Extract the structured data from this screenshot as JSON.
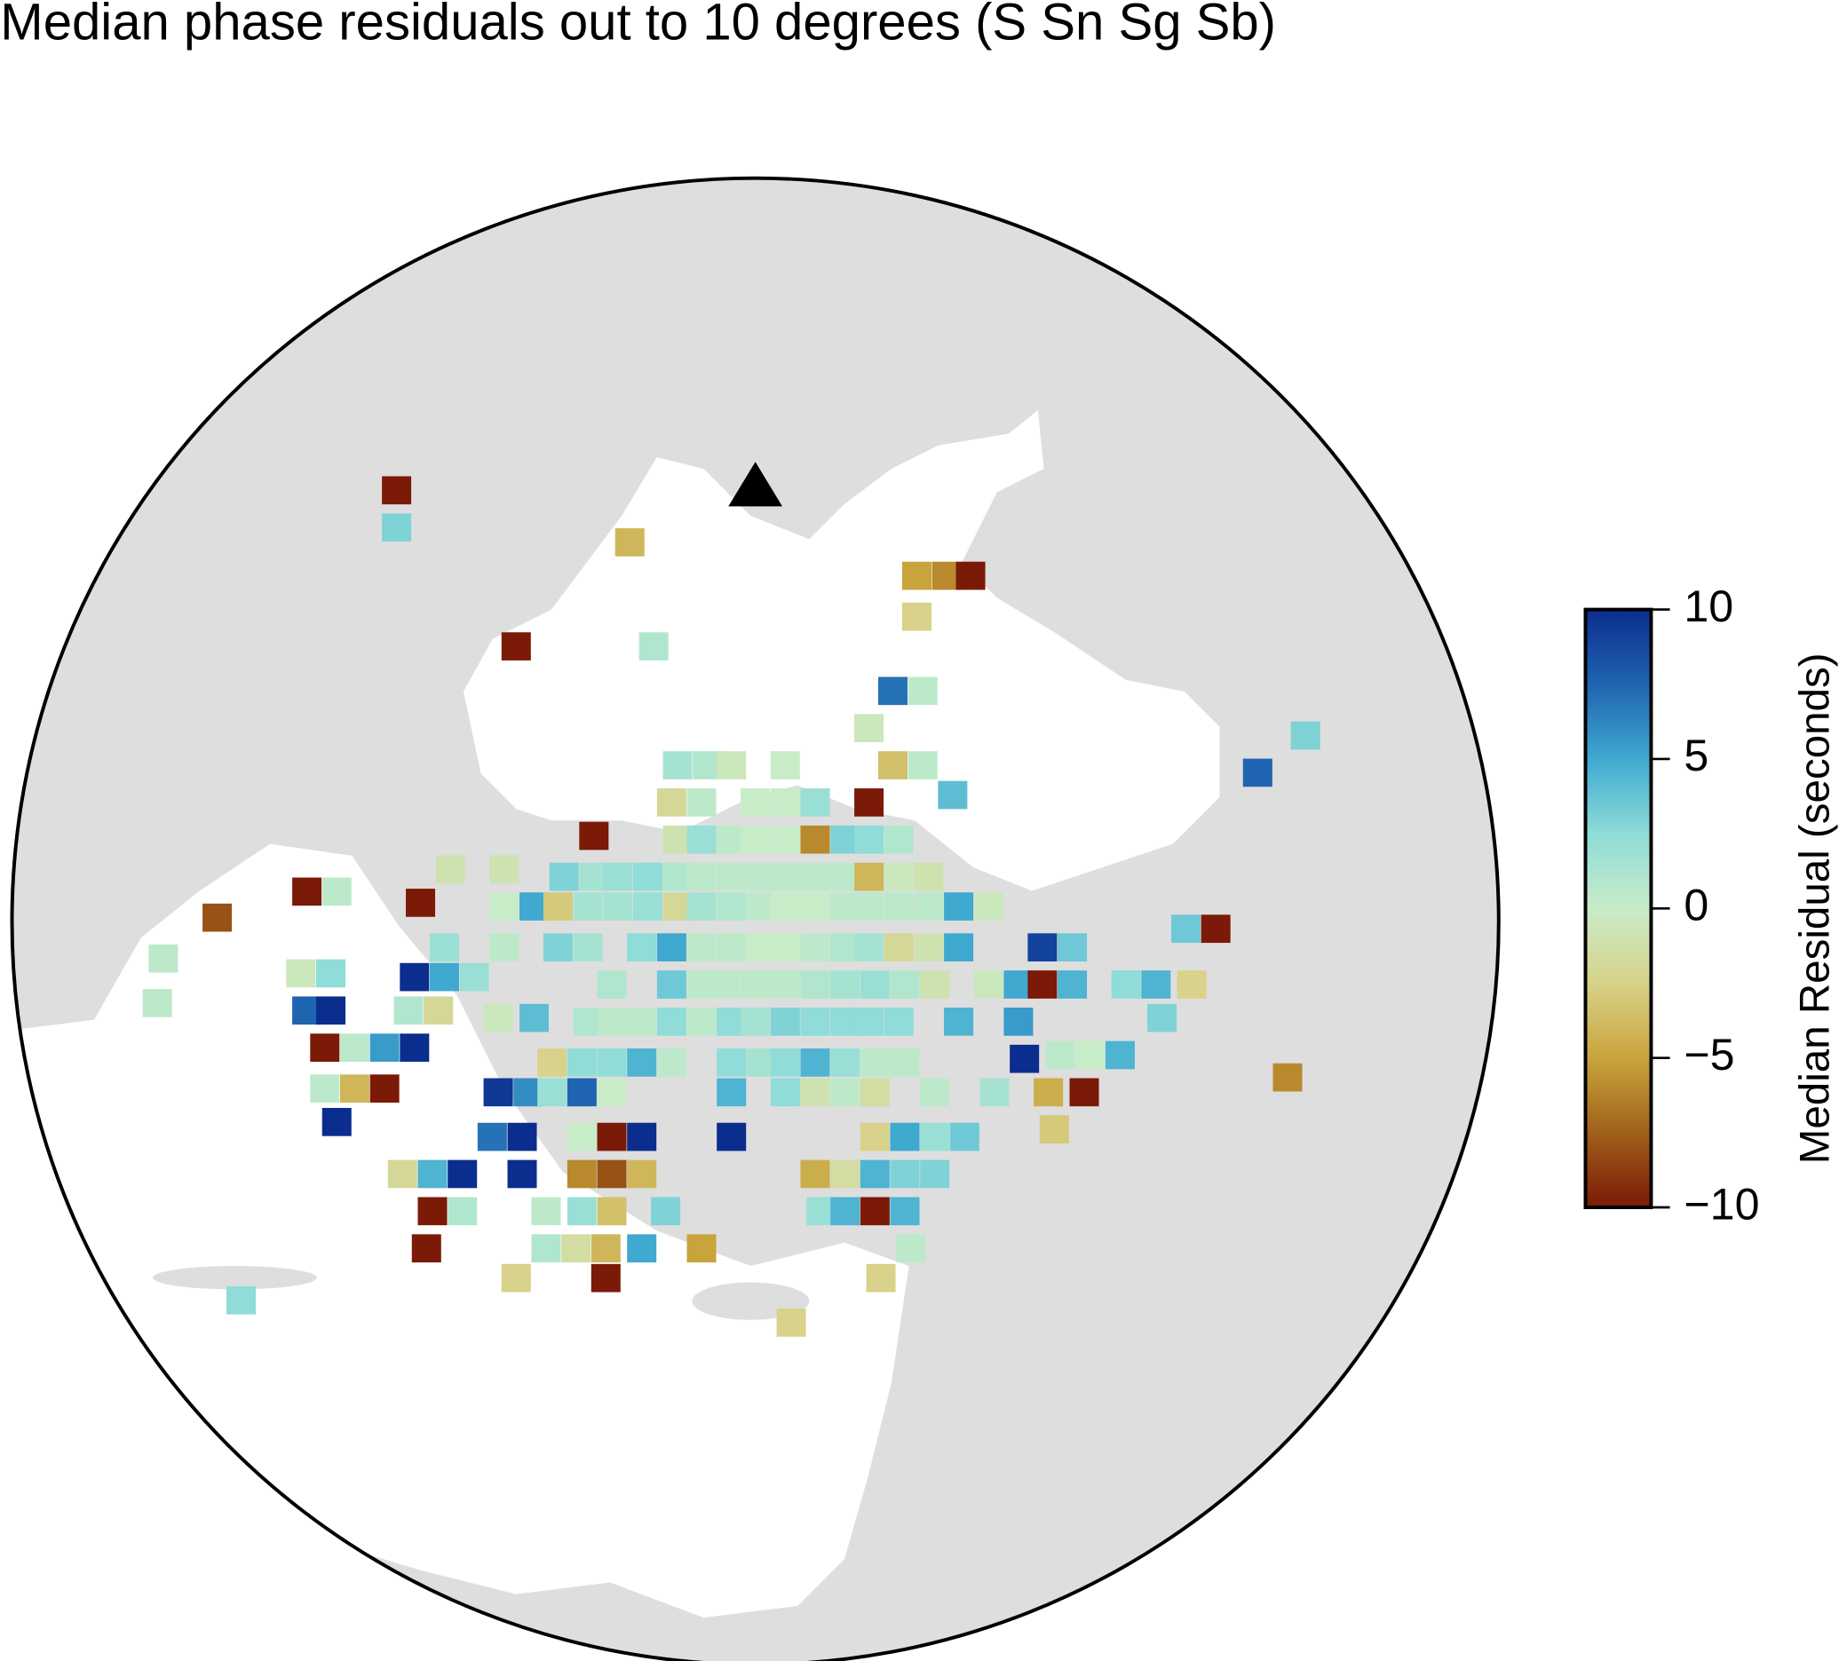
{
  "chart_data": {
    "type": "map",
    "title": "Median phase residuals out to 10 degrees (S Sn Sg Sb)",
    "colorbar": {
      "label": "Median Residual (seconds)",
      "lim": [
        -10,
        10
      ],
      "ticks": [
        {
          "value": -10,
          "label": "−10"
        },
        {
          "value": -5,
          "label": "−5"
        },
        0,
        5,
        10
      ],
      "colors": [
        "#7a1a07",
        "#a0601a",
        "#c9a43c",
        "#d8d28a",
        "#c8ecc8",
        "#8fdcd8",
        "#3fa9d0",
        "#1f64b0",
        "#0b2d8e"
      ]
    },
    "cells": [
      {
        "lon": 28.0,
        "lat": 42.8,
        "value": -10
      },
      {
        "lon": 28.0,
        "lat": 42.3,
        "value": 3
      },
      {
        "lon": 31.9,
        "lat": 42.1,
        "value": -4
      },
      {
        "lon": 36.7,
        "lat": 41.65,
        "value": -5
      },
      {
        "lon": 37.2,
        "lat": 41.65,
        "value": -6
      },
      {
        "lon": 37.6,
        "lat": 41.65,
        "value": -10
      },
      {
        "lon": 36.7,
        "lat": 41.1,
        "value": -2.5
      },
      {
        "lon": 30.0,
        "lat": 40.7,
        "value": -10
      },
      {
        "lon": 32.3,
        "lat": 40.7,
        "value": 1
      },
      {
        "lon": 36.3,
        "lat": 40.1,
        "value": 7
      },
      {
        "lon": 36.8,
        "lat": 40.1,
        "value": 0.5
      },
      {
        "lon": 35.9,
        "lat": 39.6,
        "value": -0.5
      },
      {
        "lon": 43.2,
        "lat": 39.5,
        "value": 3
      },
      {
        "lon": 32.7,
        "lat": 39.1,
        "value": 1.5
      },
      {
        "lon": 33.2,
        "lat": 39.1,
        "value": 1
      },
      {
        "lon": 33.6,
        "lat": 39.1,
        "value": -0.5
      },
      {
        "lon": 34.5,
        "lat": 39.1,
        "value": 0
      },
      {
        "lon": 36.3,
        "lat": 39.1,
        "value": -3.5
      },
      {
        "lon": 36.8,
        "lat": 39.1,
        "value": 0.5
      },
      {
        "lon": 42.4,
        "lat": 39.0,
        "value": 7.5
      },
      {
        "lon": 37.3,
        "lat": 38.7,
        "value": 4
      },
      {
        "lon": 32.6,
        "lat": 38.6,
        "value": -2
      },
      {
        "lon": 33.1,
        "lat": 38.6,
        "value": 0.5
      },
      {
        "lon": 34.0,
        "lat": 38.6,
        "value": 0
      },
      {
        "lon": 34.5,
        "lat": 38.6,
        "value": 0
      },
      {
        "lon": 35.0,
        "lat": 38.6,
        "value": 2
      },
      {
        "lon": 35.9,
        "lat": 38.6,
        "value": -10
      },
      {
        "lon": 31.3,
        "lat": 38.15,
        "value": -10
      },
      {
        "lon": 32.7,
        "lat": 38.1,
        "value": -1
      },
      {
        "lon": 33.1,
        "lat": 38.1,
        "value": 2
      },
      {
        "lon": 33.6,
        "lat": 38.1,
        "value": 0.5
      },
      {
        "lon": 34.0,
        "lat": 38.1,
        "value": 0
      },
      {
        "lon": 34.5,
        "lat": 38.1,
        "value": 0
      },
      {
        "lon": 35.0,
        "lat": 38.1,
        "value": -6
      },
      {
        "lon": 35.5,
        "lat": 38.1,
        "value": 3
      },
      {
        "lon": 35.9,
        "lat": 38.1,
        "value": 2.5
      },
      {
        "lon": 36.4,
        "lat": 38.1,
        "value": 1
      },
      {
        "lon": 28.9,
        "lat": 37.7,
        "value": -1
      },
      {
        "lon": 29.8,
        "lat": 37.7,
        "value": -1
      },
      {
        "lon": 30.8,
        "lat": 37.6,
        "value": 3
      },
      {
        "lon": 31.3,
        "lat": 37.6,
        "value": 1.5
      },
      {
        "lon": 31.7,
        "lat": 37.6,
        "value": 2
      },
      {
        "lon": 32.2,
        "lat": 37.6,
        "value": 2.5
      },
      {
        "lon": 32.7,
        "lat": 37.6,
        "value": 1
      },
      {
        "lon": 33.1,
        "lat": 37.6,
        "value": 0.5
      },
      {
        "lon": 33.6,
        "lat": 37.6,
        "value": 0.5
      },
      {
        "lon": 34.1,
        "lat": 37.6,
        "value": 0.5
      },
      {
        "lon": 34.5,
        "lat": 37.6,
        "value": 0.5
      },
      {
        "lon": 35.0,
        "lat": 37.6,
        "value": 0.5
      },
      {
        "lon": 35.5,
        "lat": 37.6,
        "value": 0.5
      },
      {
        "lon": 35.9,
        "lat": 37.6,
        "value": -4
      },
      {
        "lon": 36.4,
        "lat": 37.6,
        "value": -0.5
      },
      {
        "lon": 36.9,
        "lat": 37.6,
        "value": -1
      },
      {
        "lon": 26.5,
        "lat": 37.4,
        "value": -10
      },
      {
        "lon": 27.0,
        "lat": 37.4,
        "value": 0.5
      },
      {
        "lon": 28.4,
        "lat": 37.25,
        "value": -10
      },
      {
        "lon": 29.8,
        "lat": 37.2,
        "value": 0
      },
      {
        "lon": 30.3,
        "lat": 37.2,
        "value": 5
      },
      {
        "lon": 30.7,
        "lat": 37.2,
        "value": -3
      },
      {
        "lon": 31.2,
        "lat": 37.2,
        "value": 1.5
      },
      {
        "lon": 31.7,
        "lat": 37.2,
        "value": 1.5
      },
      {
        "lon": 32.2,
        "lat": 37.2,
        "value": 2
      },
      {
        "lon": 32.7,
        "lat": 37.2,
        "value": -2
      },
      {
        "lon": 33.1,
        "lat": 37.2,
        "value": 1.5
      },
      {
        "lon": 33.6,
        "lat": 37.2,
        "value": 1
      },
      {
        "lon": 34.1,
        "lat": 37.2,
        "value": 0.5
      },
      {
        "lon": 34.5,
        "lat": 37.2,
        "value": 0
      },
      {
        "lon": 35.0,
        "lat": 37.2,
        "value": 0
      },
      {
        "lon": 35.5,
        "lat": 37.2,
        "value": 0.5
      },
      {
        "lon": 35.9,
        "lat": 37.2,
        "value": 0.5
      },
      {
        "lon": 36.4,
        "lat": 37.2,
        "value": 0.5
      },
      {
        "lon": 36.9,
        "lat": 37.2,
        "value": 0.5
      },
      {
        "lon": 37.4,
        "lat": 37.2,
        "value": 5
      },
      {
        "lon": 37.9,
        "lat": 37.2,
        "value": -0.5
      },
      {
        "lon": 25.0,
        "lat": 37.05,
        "value": -8
      },
      {
        "lon": 41.2,
        "lat": 36.9,
        "value": 3.5
      },
      {
        "lon": 41.7,
        "lat": 36.9,
        "value": -10
      },
      {
        "lon": 28.8,
        "lat": 36.65,
        "value": 2
      },
      {
        "lon": 29.8,
        "lat": 36.65,
        "value": 0.5
      },
      {
        "lon": 30.7,
        "lat": 36.65,
        "value": 3
      },
      {
        "lon": 31.2,
        "lat": 36.65,
        "value": 1.5
      },
      {
        "lon": 32.1,
        "lat": 36.65,
        "value": 2.5
      },
      {
        "lon": 32.6,
        "lat": 36.65,
        "value": 5
      },
      {
        "lon": 33.1,
        "lat": 36.65,
        "value": 0.5
      },
      {
        "lon": 33.6,
        "lat": 36.65,
        "value": 0.5
      },
      {
        "lon": 34.1,
        "lat": 36.65,
        "value": 0
      },
      {
        "lon": 34.5,
        "lat": 36.65,
        "value": 0
      },
      {
        "lon": 35.0,
        "lat": 36.65,
        "value": 0.5
      },
      {
        "lon": 35.5,
        "lat": 36.65,
        "value": 1
      },
      {
        "lon": 35.9,
        "lat": 36.65,
        "value": 1.5
      },
      {
        "lon": 36.4,
        "lat": 36.65,
        "value": -2
      },
      {
        "lon": 36.9,
        "lat": 36.65,
        "value": -1
      },
      {
        "lon": 37.4,
        "lat": 36.65,
        "value": 5
      },
      {
        "lon": 38.8,
        "lat": 36.65,
        "value": 9
      },
      {
        "lon": 39.3,
        "lat": 36.65,
        "value": 3.5
      },
      {
        "lon": 24.1,
        "lat": 36.5,
        "value": 0.5
      },
      {
        "lon": 26.4,
        "lat": 36.3,
        "value": -0.5
      },
      {
        "lon": 26.9,
        "lat": 36.3,
        "value": 2.5
      },
      {
        "lon": 28.3,
        "lat": 36.25,
        "value": 10
      },
      {
        "lon": 28.8,
        "lat": 36.25,
        "value": 5
      },
      {
        "lon": 29.3,
        "lat": 36.25,
        "value": 2
      },
      {
        "lon": 31.6,
        "lat": 36.15,
        "value": 1
      },
      {
        "lon": 32.6,
        "lat": 36.15,
        "value": 3.5
      },
      {
        "lon": 33.1,
        "lat": 36.15,
        "value": 0.5
      },
      {
        "lon": 33.5,
        "lat": 36.15,
        "value": 0.5
      },
      {
        "lon": 34.0,
        "lat": 36.15,
        "value": 0.5
      },
      {
        "lon": 34.5,
        "lat": 36.15,
        "value": 0.5
      },
      {
        "lon": 35.0,
        "lat": 36.15,
        "value": 1
      },
      {
        "lon": 35.5,
        "lat": 36.15,
        "value": 1.5
      },
      {
        "lon": 36.0,
        "lat": 36.15,
        "value": 2
      },
      {
        "lon": 36.5,
        "lat": 36.15,
        "value": 1
      },
      {
        "lon": 37.0,
        "lat": 36.15,
        "value": -1
      },
      {
        "lon": 37.9,
        "lat": 36.15,
        "value": -0.5
      },
      {
        "lon": 38.4,
        "lat": 36.15,
        "value": 5
      },
      {
        "lon": 38.8,
        "lat": 36.15,
        "value": -10
      },
      {
        "lon": 39.3,
        "lat": 36.15,
        "value": 4.5
      },
      {
        "lon": 40.2,
        "lat": 36.15,
        "value": 2.5
      },
      {
        "lon": 40.7,
        "lat": 36.15,
        "value": 4.5
      },
      {
        "lon": 41.3,
        "lat": 36.15,
        "value": -2.5
      },
      {
        "lon": 24.0,
        "lat": 35.9,
        "value": 0.5
      },
      {
        "lon": 26.5,
        "lat": 35.8,
        "value": 7.5
      },
      {
        "lon": 26.9,
        "lat": 35.8,
        "value": 10
      },
      {
        "lon": 28.2,
        "lat": 35.8,
        "value": 1
      },
      {
        "lon": 28.7,
        "lat": 35.8,
        "value": -2
      },
      {
        "lon": 29.7,
        "lat": 35.7,
        "value": -0.5
      },
      {
        "lon": 30.3,
        "lat": 35.7,
        "value": 4
      },
      {
        "lon": 40.8,
        "lat": 35.7,
        "value": 3
      },
      {
        "lon": 31.2,
        "lat": 35.65,
        "value": 1
      },
      {
        "lon": 31.6,
        "lat": 35.65,
        "value": 0.5
      },
      {
        "lon": 32.1,
        "lat": 35.65,
        "value": 0.5
      },
      {
        "lon": 32.6,
        "lat": 35.65,
        "value": 2.5
      },
      {
        "lon": 33.1,
        "lat": 35.65,
        "value": 0.5
      },
      {
        "lon": 33.6,
        "lat": 35.65,
        "value": 2.5
      },
      {
        "lon": 34.0,
        "lat": 35.65,
        "value": 1.5
      },
      {
        "lon": 34.5,
        "lat": 35.65,
        "value": 3
      },
      {
        "lon": 35.0,
        "lat": 35.65,
        "value": 2.5
      },
      {
        "lon": 35.5,
        "lat": 35.65,
        "value": 2.5
      },
      {
        "lon": 35.9,
        "lat": 35.65,
        "value": 2.5
      },
      {
        "lon": 36.4,
        "lat": 35.65,
        "value": 2.5
      },
      {
        "lon": 37.4,
        "lat": 35.65,
        "value": 4.5
      },
      {
        "lon": 38.4,
        "lat": 35.65,
        "value": 5.5
      },
      {
        "lon": 26.8,
        "lat": 35.3,
        "value": -10
      },
      {
        "lon": 27.3,
        "lat": 35.3,
        "value": 0.5
      },
      {
        "lon": 27.8,
        "lat": 35.3,
        "value": 5.5
      },
      {
        "lon": 28.3,
        "lat": 35.3,
        "value": 10
      },
      {
        "lon": 40.1,
        "lat": 35.2,
        "value": 4.5
      },
      {
        "lon": 39.1,
        "lat": 35.2,
        "value": 0.5
      },
      {
        "lon": 39.6,
        "lat": 35.2,
        "value": 0
      },
      {
        "lon": 38.5,
        "lat": 35.15,
        "value": 10
      },
      {
        "lon": 30.6,
        "lat": 35.1,
        "value": -2.5
      },
      {
        "lon": 31.1,
        "lat": 35.1,
        "value": 2.5
      },
      {
        "lon": 31.6,
        "lat": 35.1,
        "value": 2.5
      },
      {
        "lon": 32.1,
        "lat": 35.1,
        "value": 4.5
      },
      {
        "lon": 32.6,
        "lat": 35.1,
        "value": 0.5
      },
      {
        "lon": 33.6,
        "lat": 35.1,
        "value": 2.5
      },
      {
        "lon": 34.1,
        "lat": 35.1,
        "value": 1.5
      },
      {
        "lon": 34.5,
        "lat": 35.1,
        "value": 2.5
      },
      {
        "lon": 35.0,
        "lat": 35.1,
        "value": 4.5
      },
      {
        "lon": 35.5,
        "lat": 35.1,
        "value": 2
      },
      {
        "lon": 36.0,
        "lat": 35.1,
        "value": 0.5
      },
      {
        "lon": 36.5,
        "lat": 35.1,
        "value": 0.5
      },
      {
        "lon": 42.9,
        "lat": 34.9,
        "value": -6
      },
      {
        "lon": 26.8,
        "lat": 34.75,
        "value": 0.5
      },
      {
        "lon": 27.3,
        "lat": 34.75,
        "value": -4
      },
      {
        "lon": 27.8,
        "lat": 34.75,
        "value": -10
      },
      {
        "lon": 29.7,
        "lat": 34.7,
        "value": 9.5
      },
      {
        "lon": 30.2,
        "lat": 34.7,
        "value": 6
      },
      {
        "lon": 30.6,
        "lat": 34.7,
        "value": 2
      },
      {
        "lon": 31.1,
        "lat": 34.7,
        "value": 7.5
      },
      {
        "lon": 31.6,
        "lat": 34.7,
        "value": 0
      },
      {
        "lon": 33.6,
        "lat": 34.7,
        "value": 4.5
      },
      {
        "lon": 34.5,
        "lat": 34.7,
        "value": 2.5
      },
      {
        "lon": 35.0,
        "lat": 34.7,
        "value": -1
      },
      {
        "lon": 35.5,
        "lat": 34.7,
        "value": 0.5
      },
      {
        "lon": 36.0,
        "lat": 34.7,
        "value": -1.5
      },
      {
        "lon": 37.0,
        "lat": 34.7,
        "value": 0.5
      },
      {
        "lon": 38.0,
        "lat": 34.7,
        "value": 1.5
      },
      {
        "lon": 38.9,
        "lat": 34.7,
        "value": -4.5
      },
      {
        "lon": 39.5,
        "lat": 34.7,
        "value": -10
      },
      {
        "lon": 27.0,
        "lat": 34.3,
        "value": 10
      },
      {
        "lon": 39.0,
        "lat": 34.2,
        "value": -3
      },
      {
        "lon": 29.6,
        "lat": 34.1,
        "value": 7
      },
      {
        "lon": 30.1,
        "lat": 34.1,
        "value": 10
      },
      {
        "lon": 31.1,
        "lat": 34.1,
        "value": 0
      },
      {
        "lon": 31.6,
        "lat": 34.1,
        "value": -10
      },
      {
        "lon": 32.1,
        "lat": 34.1,
        "value": 10
      },
      {
        "lon": 33.6,
        "lat": 34.1,
        "value": 10
      },
      {
        "lon": 36.0,
        "lat": 34.1,
        "value": -2.5
      },
      {
        "lon": 36.5,
        "lat": 34.1,
        "value": 5
      },
      {
        "lon": 37.0,
        "lat": 34.1,
        "value": 2
      },
      {
        "lon": 37.5,
        "lat": 34.1,
        "value": 3.5
      },
      {
        "lon": 28.1,
        "lat": 33.6,
        "value": -2
      },
      {
        "lon": 28.6,
        "lat": 33.6,
        "value": 4.5
      },
      {
        "lon": 29.1,
        "lat": 33.6,
        "value": 10
      },
      {
        "lon": 30.1,
        "lat": 33.6,
        "value": 10
      },
      {
        "lon": 31.1,
        "lat": 33.6,
        "value": -6
      },
      {
        "lon": 31.6,
        "lat": 33.6,
        "value": -8
      },
      {
        "lon": 32.1,
        "lat": 33.6,
        "value": -4
      },
      {
        "lon": 35.0,
        "lat": 33.6,
        "value": -4.5
      },
      {
        "lon": 35.5,
        "lat": 33.6,
        "value": -1.5
      },
      {
        "lon": 36.0,
        "lat": 33.6,
        "value": 4.5
      },
      {
        "lon": 36.5,
        "lat": 33.6,
        "value": 3
      },
      {
        "lon": 37.0,
        "lat": 33.6,
        "value": 3
      },
      {
        "lon": 28.6,
        "lat": 33.1,
        "value": -10
      },
      {
        "lon": 29.1,
        "lat": 33.1,
        "value": 1
      },
      {
        "lon": 30.5,
        "lat": 33.1,
        "value": 0.5
      },
      {
        "lon": 31.1,
        "lat": 33.1,
        "value": 2
      },
      {
        "lon": 31.6,
        "lat": 33.1,
        "value": -3.5
      },
      {
        "lon": 32.5,
        "lat": 33.1,
        "value": 3
      },
      {
        "lon": 35.1,
        "lat": 33.1,
        "value": 2
      },
      {
        "lon": 35.5,
        "lat": 33.1,
        "value": 4.5
      },
      {
        "lon": 36.0,
        "lat": 33.1,
        "value": -10
      },
      {
        "lon": 36.5,
        "lat": 33.1,
        "value": 4.5
      },
      {
        "lon": 28.5,
        "lat": 32.6,
        "value": -10
      },
      {
        "lon": 30.5,
        "lat": 32.6,
        "value": 1
      },
      {
        "lon": 31.0,
        "lat": 32.6,
        "value": -1.5
      },
      {
        "lon": 31.5,
        "lat": 32.6,
        "value": -4
      },
      {
        "lon": 32.1,
        "lat": 32.6,
        "value": 5
      },
      {
        "lon": 33.1,
        "lat": 32.6,
        "value": -5
      },
      {
        "lon": 36.6,
        "lat": 32.6,
        "value": 0.5
      },
      {
        "lon": 30.0,
        "lat": 32.2,
        "value": -2.5
      },
      {
        "lon": 31.5,
        "lat": 32.2,
        "value": -10
      },
      {
        "lon": 36.1,
        "lat": 32.2,
        "value": -2.5
      },
      {
        "lon": 25.4,
        "lat": 31.9,
        "value": 2.5
      },
      {
        "lon": 34.6,
        "lat": 31.6,
        "value": -2.5
      }
    ]
  }
}
